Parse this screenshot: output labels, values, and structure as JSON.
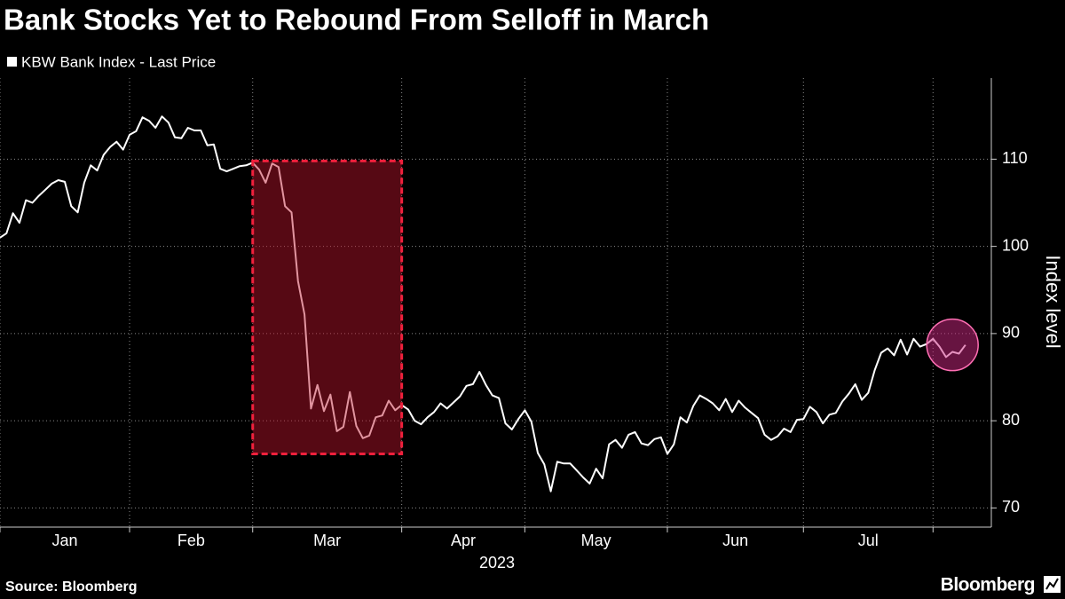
{
  "chart_data": {
    "type": "line",
    "title": "Bank Stocks Yet to Rebound From Selloff in March",
    "ylabel": "Index level",
    "xlabel": "2023",
    "source": "Source: Bloomberg",
    "brand": "Bloomberg",
    "xlim": [
      0,
      153
    ],
    "xticks": [
      {
        "value": 0,
        "label": "Jan"
      },
      {
        "value": 20,
        "label": "Feb"
      },
      {
        "value": 39,
        "label": "Mar"
      },
      {
        "value": 62,
        "label": "Apr"
      },
      {
        "value": 81,
        "label": "May"
      },
      {
        "value": 103,
        "label": "Jun"
      },
      {
        "value": 124,
        "label": "Jul"
      },
      144
    ],
    "ylim": [
      67.8,
      119.3
    ],
    "yticks": [
      70,
      80,
      90,
      100,
      110
    ],
    "grid": true,
    "highlight_box": {
      "xlim": [
        39,
        62
      ],
      "ylim": [
        76.2,
        109.8
      ]
    },
    "highlight_circle": {
      "x": 147,
      "y": 88.7
    },
    "x": [
      0,
      1,
      2,
      3,
      4,
      5,
      6,
      7,
      8,
      9,
      10,
      11,
      12,
      13,
      14,
      15,
      16,
      17,
      18,
      19,
      20,
      21,
      22,
      23,
      24,
      25,
      26,
      27,
      28,
      29,
      30,
      31,
      32,
      33,
      34,
      35,
      36,
      37,
      38,
      39,
      40,
      41,
      42,
      43,
      44,
      45,
      46,
      47,
      48,
      49,
      50,
      51,
      52,
      53,
      54,
      55,
      56,
      57,
      58,
      59,
      60,
      61,
      62,
      63,
      64,
      65,
      66,
      67,
      68,
      69,
      70,
      71,
      72,
      73,
      74,
      75,
      76,
      77,
      78,
      79,
      80,
      81,
      82,
      83,
      84,
      85,
      86,
      87,
      88,
      89,
      90,
      91,
      92,
      93,
      94,
      95,
      96,
      97,
      98,
      99,
      100,
      101,
      102,
      103,
      104,
      105,
      106,
      107,
      108,
      109,
      110,
      111,
      112,
      113,
      114,
      115,
      116,
      117,
      118,
      119,
      120,
      121,
      122,
      123,
      124,
      125,
      126,
      127,
      128,
      129,
      130,
      131,
      132,
      133,
      134,
      135,
      136,
      137,
      138,
      139,
      140,
      141,
      142,
      143,
      144,
      145,
      146,
      147,
      148,
      149
    ],
    "series": [
      {
        "name": "KBW Bank Index - Last Price",
        "color": "#ffffff",
        "values": [
          101,
          101.5,
          103.8,
          102.7,
          105.3,
          105,
          105.8,
          106.5,
          107.2,
          107.6,
          107.4,
          104.6,
          103.9,
          107.3,
          109.3,
          108.7,
          110.5,
          111.4,
          112,
          111.1,
          112.8,
          113.2,
          114.8,
          114.4,
          113.6,
          114.9,
          114.2,
          112.5,
          112.4,
          113.6,
          113.3,
          113.3,
          111.6,
          111.7,
          108.9,
          108.6,
          108.9,
          109.2,
          109.3,
          109.6,
          108.8,
          107.3,
          109.5,
          109.1,
          104.6,
          103.9,
          96,
          92.2,
          81.4,
          84.1,
          81.1,
          83,
          78.8,
          79.3,
          83.3,
          79.4,
          78,
          78.3,
          80.4,
          80.6,
          82.3,
          81.2,
          81.8,
          81.3,
          80,
          79.6,
          80.4,
          81,
          82,
          81.4,
          82.1,
          82.8,
          84,
          84.2,
          85.6,
          84.1,
          82.9,
          82.6,
          79.7,
          79,
          80.2,
          81.2,
          79.9,
          76.3,
          75,
          71.9,
          75.3,
          75.1,
          75.1,
          74.3,
          73.5,
          72.8,
          74.5,
          73.4,
          77.3,
          77.8,
          76.9,
          78.4,
          78.7,
          77.4,
          77.2,
          77.9,
          78.1,
          76.2,
          77.3,
          80.4,
          79.8,
          81.7,
          82.9,
          82.5,
          82,
          81.2,
          82.5,
          81,
          82.3,
          81.5,
          80.9,
          80.3,
          78.4,
          77.8,
          78.2,
          79.1,
          78.7,
          80.1,
          80.2,
          81.6,
          81,
          79.7,
          80.7,
          80.9,
          82.2,
          83.1,
          84.2,
          82.4,
          83.2,
          85.8,
          87.8,
          88.3,
          87.5,
          89.3,
          87.6,
          89.4,
          88.5,
          88.8,
          89.4,
          88.5,
          87.3,
          87.9,
          87.7,
          88.7
        ]
      }
    ]
  }
}
